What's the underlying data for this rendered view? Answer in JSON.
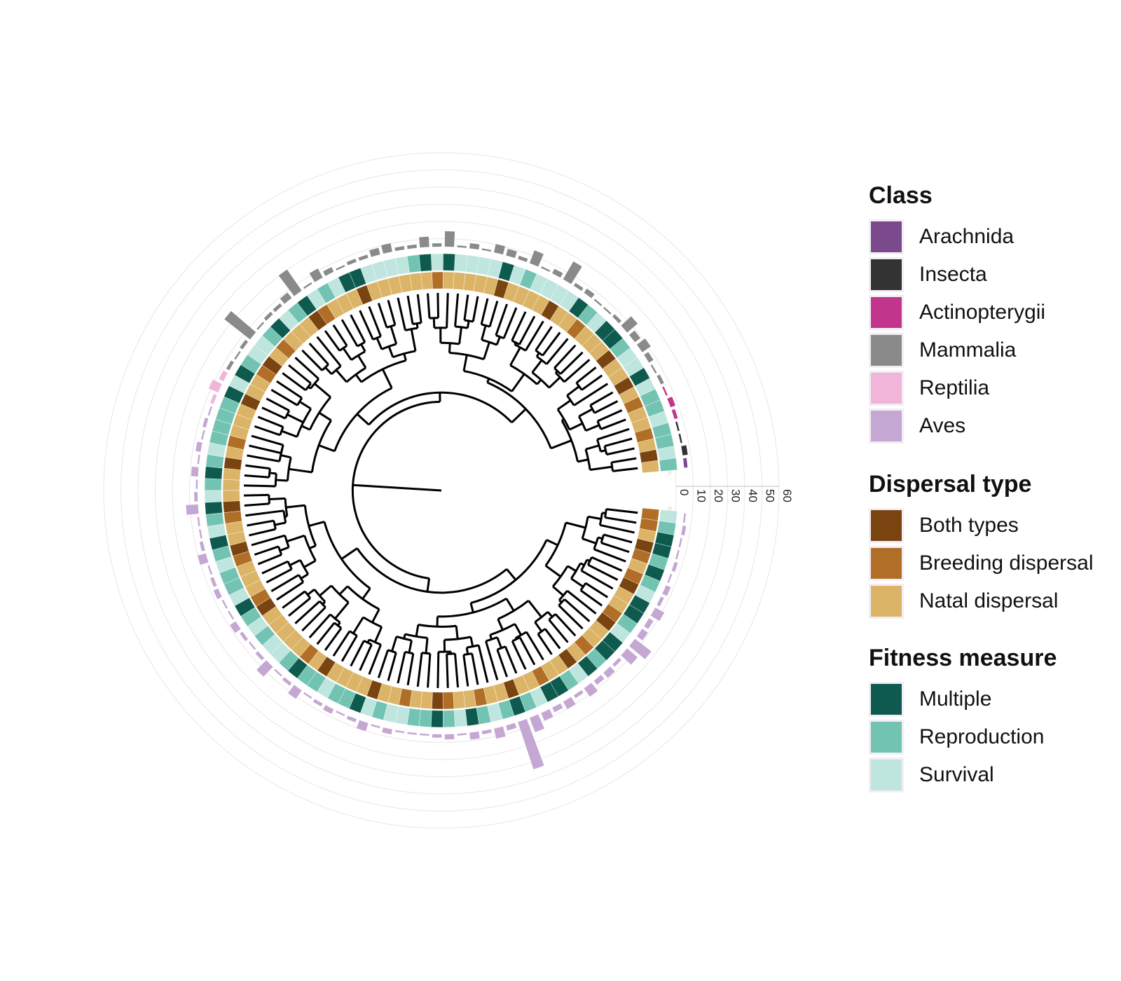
{
  "radial_axis": {
    "tick_labels": [
      "0",
      "10",
      "20",
      "30",
      "40",
      "50",
      "60"
    ]
  },
  "legends": {
    "class": {
      "title": "Class",
      "items": [
        {
          "label": "Arachnida",
          "color": "#7b4a8c"
        },
        {
          "label": "Insecta",
          "color": "#333333"
        },
        {
          "label": "Actinopterygii",
          "color": "#c2358c"
        },
        {
          "label": "Mammalia",
          "color": "#8a8a8a"
        },
        {
          "label": "Reptilia",
          "color": "#f0b5d8"
        },
        {
          "label": "Aves",
          "color": "#c4a7d2"
        }
      ]
    },
    "dispersal": {
      "title": "Dispersal type",
      "items": [
        {
          "label": "Both types",
          "color": "#7a4410"
        },
        {
          "label": "Breeding dispersal",
          "color": "#b06e26"
        },
        {
          "label": "Natal dispersal",
          "color": "#dbb468"
        }
      ]
    },
    "fitness": {
      "title": "Fitness measure",
      "items": [
        {
          "label": "Multiple",
          "color": "#0f5a4e"
        },
        {
          "label": "Reproduction",
          "color": "#72c3b2"
        },
        {
          "label": "Survival",
          "color": "#bfe5df"
        }
      ]
    }
  },
  "tree": {
    "tip_count": 120,
    "tip_classes": [
      "Arachnida",
      "Insecta",
      "Insecta",
      "Insecta",
      "Actinopterygii",
      "Actinopterygii",
      "Actinopterygii",
      "Mammalia",
      "Mammalia",
      "Mammalia",
      "Mammalia",
      "Mammalia",
      "Mammalia",
      "Mammalia",
      "Mammalia",
      "Mammalia",
      "Mammalia",
      "Mammalia",
      "Mammalia",
      "Mammalia",
      "Mammalia",
      "Mammalia",
      "Mammalia",
      "Mammalia",
      "Mammalia",
      "Mammalia",
      "Mammalia",
      "Mammalia",
      "Mammalia",
      "Mammalia",
      "Mammalia",
      "Mammalia",
      "Mammalia",
      "Mammalia",
      "Mammalia",
      "Mammalia",
      "Mammalia",
      "Mammalia",
      "Mammalia",
      "Mammalia",
      "Mammalia",
      "Mammalia",
      "Mammalia",
      "Mammalia",
      "Mammalia",
      "Mammalia",
      "Mammalia",
      "Mammalia",
      "Mammalia",
      "Mammalia",
      "Reptilia",
      "Reptilia",
      "Reptilia",
      "Aves",
      "Aves",
      "Aves",
      "Aves",
      "Aves",
      "Aves",
      "Aves",
      "Aves",
      "Aves",
      "Aves",
      "Aves",
      "Aves",
      "Aves",
      "Aves",
      "Aves",
      "Aves",
      "Aves",
      "Aves",
      "Aves",
      "Aves",
      "Aves",
      "Aves",
      "Aves",
      "Aves",
      "Aves",
      "Aves",
      "Aves",
      "Aves",
      "Aves",
      "Aves",
      "Aves",
      "Aves",
      "Aves",
      "Aves",
      "Aves",
      "Aves",
      "Aves",
      "Aves",
      "Aves",
      "Aves",
      "Aves",
      "Aves",
      "Aves",
      "Aves",
      "Aves",
      "Aves",
      "Aves",
      "Aves",
      "Aves",
      "Aves",
      "Aves",
      "Aves",
      "Aves",
      "Aves",
      "Aves",
      "Aves",
      "Aves",
      "Aves",
      "Aves",
      "Aves",
      "Aves",
      "Aves",
      "Aves",
      "Aves",
      "Aves",
      "Aves",
      "Aves"
    ],
    "tip_dispersal": [
      "Natal dispersal",
      "Both types",
      "Natal dispersal",
      "Breeding dispersal",
      "Natal dispersal",
      "Natal dispersal",
      "Breeding dispersal",
      "Natal dispersal",
      "Both types",
      "Natal dispersal",
      "Natal dispersal",
      "Both types",
      "Natal dispersal",
      "Natal dispersal",
      "Natal dispersal",
      "Breeding dispersal",
      "Natal dispersal",
      "Natal dispersal",
      "Both types",
      "Natal dispersal",
      "Natal dispersal",
      "Natal dispersal",
      "Natal dispersal",
      "Both types",
      "Natal dispersal",
      "Natal dispersal",
      "Natal dispersal",
      "Natal dispersal",
      "Natal dispersal",
      "Breeding dispersal",
      "Natal dispersal",
      "Natal dispersal",
      "Natal dispersal",
      "Natal dispersal",
      "Natal dispersal",
      "Natal dispersal",
      "Both types",
      "Natal dispersal",
      "Natal dispersal",
      "Natal dispersal",
      "Breeding dispersal",
      "Both types",
      "Natal dispersal",
      "Natal dispersal",
      "Natal dispersal",
      "Breeding dispersal",
      "Natal dispersal",
      "Both types",
      "Breeding dispersal",
      "Natal dispersal",
      "Natal dispersal",
      "Both types",
      "Natal dispersal",
      "Natal dispersal",
      "Natal dispersal",
      "Breeding dispersal",
      "Natal dispersal",
      "Both types",
      "Natal dispersal",
      "Natal dispersal",
      "Natal dispersal",
      "Both types",
      "Breeding dispersal",
      "Natal dispersal",
      "Natal dispersal",
      "Both types",
      "Breeding dispersal",
      "Natal dispersal",
      "Natal dispersal",
      "Natal dispersal",
      "Breeding dispersal",
      "Both types",
      "Natal dispersal",
      "Natal dispersal",
      "Natal dispersal",
      "Natal dispersal",
      "Natal dispersal",
      "Breeding dispersal",
      "Natal dispersal",
      "Both types",
      "Natal dispersal",
      "Natal dispersal",
      "Natal dispersal",
      "Natal dispersal",
      "Both types",
      "Natal dispersal",
      "Natal dispersal",
      "Breeding dispersal",
      "Natal dispersal",
      "Natal dispersal",
      "Both types",
      "Breeding dispersal",
      "Natal dispersal",
      "Natal dispersal",
      "Breeding dispersal",
      "Natal dispersal",
      "Natal dispersal",
      "Both types",
      "Natal dispersal",
      "Natal dispersal",
      "Breeding dispersal",
      "Natal dispersal",
      "Natal dispersal",
      "Both types",
      "Natal dispersal",
      "Breeding dispersal",
      "Natal dispersal",
      "Natal dispersal",
      "Both types",
      "Breeding dispersal",
      "Natal dispersal",
      "Natal dispersal",
      "Both types",
      "Breeding dispersal",
      "Natal dispersal",
      "Breeding dispersal",
      "Both types",
      "Natal dispersal",
      "Breeding dispersal",
      "Breeding dispersal"
    ],
    "tip_fitness": [
      "Reproduction",
      "Survival",
      "Reproduction",
      "Reproduction",
      "Survival",
      "Reproduction",
      "Reproduction",
      "Survival",
      "Multiple",
      "Survival",
      "Survival",
      "Reproduction",
      "Multiple",
      "Multiple",
      "Survival",
      "Reproduction",
      "Multiple",
      "Survival",
      "Survival",
      "Survival",
      "Survival",
      "Reproduction",
      "Survival",
      "Multiple",
      "Survival",
      "Survival",
      "Survival",
      "Survival",
      "Multiple",
      "Survival",
      "Multiple",
      "Reproduction",
      "Survival",
      "Survival",
      "Survival",
      "Survival",
      "Multiple",
      "Multiple",
      "Survival",
      "Reproduction",
      "Survival",
      "Multiple",
      "Reproduction",
      "Survival",
      "Multiple",
      "Reproduction",
      "Survival",
      "Survival",
      "Reproduction",
      "Multiple",
      "Survival",
      "Multiple",
      "Reproduction",
      "Reproduction",
      "Reproduction",
      "Reproduction",
      "Survival",
      "Reproduction",
      "Multiple",
      "Reproduction",
      "Survival",
      "Multiple",
      "Reproduction",
      "Survival",
      "Multiple",
      "Reproduction",
      "Survival",
      "Reproduction",
      "Reproduction",
      "Survival",
      "Multiple",
      "Reproduction",
      "Survival",
      "Reproduction",
      "Survival",
      "Survival",
      "Reproduction",
      "Multiple",
      "Reproduction",
      "Reproduction",
      "Survival",
      "Reproduction",
      "Reproduction",
      "Multiple",
      "Survival",
      "Reproduction",
      "Survival",
      "Survival",
      "Reproduction",
      "Reproduction",
      "Multiple",
      "Reproduction",
      "Survival",
      "Multiple",
      "Reproduction",
      "Survival",
      "Reproduction",
      "Multiple",
      "Reproduction",
      "Survival",
      "Multiple",
      "Multiple",
      "Reproduction",
      "Survival",
      "Multiple",
      "Reproduction",
      "Multiple",
      "Multiple",
      "Survival",
      "Reproduction",
      "Multiple",
      "Multiple",
      "Survival",
      "Reproduction",
      "Multiple",
      "Reproduction",
      "Multiple",
      "Multiple",
      "Reproduction",
      "Survival"
    ],
    "tip_values": [
      2,
      3,
      1,
      1,
      2,
      3,
      1,
      2,
      1,
      3,
      6,
      4,
      8,
      2,
      1,
      1,
      3,
      2,
      12,
      3,
      1,
      8,
      2,
      4,
      5,
      1,
      3,
      1,
      9,
      2,
      6,
      2,
      2,
      5,
      4,
      2,
      2,
      1,
      3,
      6,
      1,
      15,
      4,
      2,
      2,
      1,
      19,
      2,
      1,
      2,
      3,
      6,
      2,
      1,
      2,
      1,
      3,
      1,
      4,
      1,
      2,
      7,
      1,
      1,
      2,
      5,
      1,
      2,
      3,
      1,
      1,
      4,
      2,
      1,
      2,
      8,
      1,
      2,
      6,
      1,
      2,
      3,
      1,
      2,
      5,
      1,
      3,
      1,
      1,
      1,
      2,
      3,
      1,
      4,
      2,
      6,
      3,
      29,
      9,
      5,
      3,
      5,
      2,
      6,
      3,
      4,
      2,
      8,
      12,
      4,
      3,
      6,
      2,
      3,
      1,
      2,
      1,
      1,
      2,
      1
    ]
  }
}
